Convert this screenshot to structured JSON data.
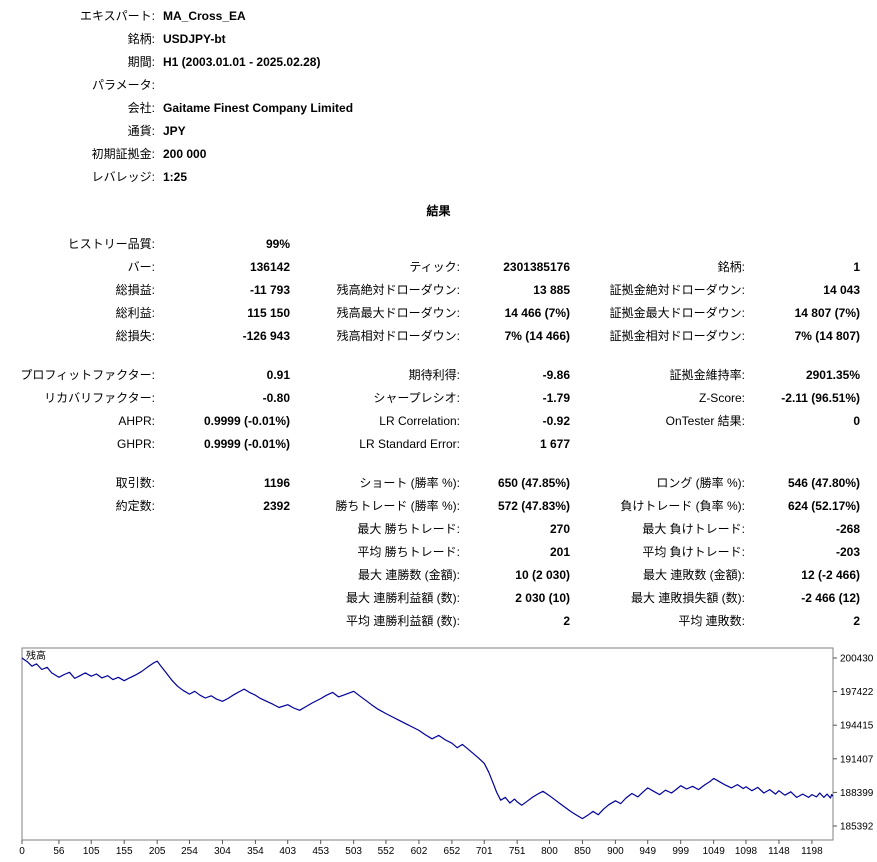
{
  "header": {
    "rows": [
      {
        "label": "エキスパート:",
        "value": "MA_Cross_EA"
      },
      {
        "label": "銘柄:",
        "value": "USDJPY-bt"
      },
      {
        "label": "期間:",
        "value": "H1 (2003.01.01 - 2025.02.28)"
      },
      {
        "label": "パラメータ:",
        "value": ""
      },
      {
        "label": "会社:",
        "value": "Gaitame Finest Company Limited"
      },
      {
        "label": "通貨:",
        "value": "JPY"
      },
      {
        "label": "初期証拠金:",
        "value": "200 000"
      },
      {
        "label": "レバレッジ:",
        "value": "1:25"
      }
    ]
  },
  "results": {
    "title": "結果",
    "groups": [
      [
        [
          "ヒストリー品質:",
          "99%",
          "",
          "",
          "",
          ""
        ],
        [
          "バー:",
          "136142",
          "ティック:",
          "2301385176",
          "銘柄:",
          "1"
        ],
        [
          "総損益:",
          "-11 793",
          "残高絶対ドローダウン:",
          "13 885",
          "証拠金絶対ドローダウン:",
          "14 043"
        ],
        [
          "総利益:",
          "115 150",
          "残高最大ドローダウン:",
          "14 466 (7%)",
          "証拠金最大ドローダウン:",
          "14 807 (7%)"
        ],
        [
          "総損失:",
          "-126 943",
          "残高相対ドローダウン:",
          "7% (14 466)",
          "証拠金相対ドローダウン:",
          "7% (14 807)"
        ]
      ],
      [
        [
          "プロフィットファクター:",
          "0.91",
          "期待利得:",
          "-9.86",
          "証拠金維持率:",
          "2901.35%"
        ],
        [
          "リカバリファクター:",
          "-0.80",
          "シャープレシオ:",
          "-1.79",
          "Z-Score:",
          "-2.11 (96.51%)"
        ],
        [
          "AHPR:",
          "0.9999 (-0.01%)",
          "LR Correlation:",
          "-0.92",
          "OnTester 結果:",
          "0"
        ],
        [
          "GHPR:",
          "0.9999 (-0.01%)",
          "LR Standard Error:",
          "1 677",
          "",
          ""
        ]
      ],
      [
        [
          "取引数:",
          "1196",
          "ショート (勝率 %):",
          "650 (47.85%)",
          "ロング (勝率 %):",
          "546 (47.80%)"
        ],
        [
          "約定数:",
          "2392",
          "勝ちトレード (勝率 %):",
          "572 (47.83%)",
          "負けトレード (負率 %):",
          "624 (52.17%)"
        ],
        [
          "",
          "",
          "最大 勝ちトレード:",
          "270",
          "最大 負けトレード:",
          "-268"
        ],
        [
          "",
          "",
          "平均 勝ちトレード:",
          "201",
          "平均 負けトレード:",
          "-203"
        ],
        [
          "",
          "",
          "最大 連勝数 (金額):",
          "10 (2 030)",
          "最大 連敗数 (金額):",
          "12 (-2 466)"
        ],
        [
          "",
          "",
          "最大 連勝利益額 (数):",
          "2 030 (10)",
          "最大 連敗損失額 (数):",
          "-2 466 (12)"
        ],
        [
          "",
          "",
          "平均 連勝利益額 (数):",
          "2",
          "平均 連敗数:",
          "2"
        ]
      ]
    ]
  },
  "chart_data": {
    "type": "line",
    "title": "残高",
    "xlabel": "",
    "ylabel": "",
    "xlim": [
      0,
      1230
    ],
    "ylim": [
      185392,
      200430
    ],
    "x_ticks": [
      0,
      56,
      105,
      155,
      205,
      254,
      304,
      354,
      403,
      453,
      503,
      552,
      602,
      652,
      701,
      751,
      800,
      850,
      900,
      949,
      999,
      1049,
      1098,
      1148,
      1198
    ],
    "y_ticks": [
      200430,
      197422,
      194415,
      191407,
      188399,
      185392
    ],
    "grid": false,
    "legend_position": "top-left",
    "line_color": "#00009b",
    "series": [
      {
        "name": "残高",
        "x": [
          0,
          8,
          15,
          22,
          30,
          38,
          45,
          56,
          64,
          72,
          80,
          88,
          96,
          105,
          113,
          121,
          130,
          138,
          146,
          155,
          163,
          172,
          181,
          190,
          200,
          205,
          212,
          220,
          228,
          236,
          245,
          254,
          262,
          270,
          278,
          287,
          295,
          304,
          312,
          320,
          329,
          337,
          345,
          354,
          362,
          371,
          380,
          390,
          403,
          412,
          421,
          430,
          440,
          453,
          462,
          471,
          480,
          490,
          503,
          512,
          521,
          530,
          540,
          552,
          562,
          572,
          582,
          592,
          602,
          612,
          622,
          632,
          642,
          652,
          660,
          668,
          676,
          684,
          692,
          701,
          708,
          714,
          720,
          726,
          733,
          740,
          747,
          751,
          758,
          766,
          774,
          782,
          790,
          800,
          808,
          816,
          824,
          832,
          840,
          850,
          858,
          866,
          874,
          882,
          890,
          900,
          908,
          916,
          925,
          934,
          943,
          949,
          958,
          967,
          976,
          985,
          994,
          999,
          1008,
          1017,
          1026,
          1035,
          1044,
          1049,
          1058,
          1067,
          1076,
          1085,
          1094,
          1098,
          1107,
          1116,
          1125,
          1134,
          1143,
          1148,
          1157,
          1166,
          1175,
          1184,
          1193,
          1198,
          1205,
          1210,
          1216,
          1221,
          1226,
          1228,
          1230
        ],
        "y": [
          200430,
          200100,
          199700,
          199900,
          199400,
          199600,
          199100,
          198700,
          198950,
          199150,
          198600,
          198850,
          199100,
          198800,
          199000,
          198650,
          198850,
          198500,
          198700,
          198400,
          198650,
          198900,
          199200,
          199600,
          200000,
          200150,
          199600,
          199000,
          198400,
          197900,
          197500,
          197200,
          197450,
          197100,
          196850,
          197050,
          196750,
          196550,
          196800,
          197100,
          197400,
          197650,
          197350,
          197100,
          196800,
          196550,
          196300,
          196000,
          196250,
          195950,
          195750,
          196050,
          196400,
          196800,
          197100,
          197350,
          196950,
          197150,
          197450,
          197050,
          196650,
          196250,
          195850,
          195450,
          195150,
          194850,
          194550,
          194250,
          193950,
          193550,
          193200,
          193500,
          193100,
          192800,
          192400,
          192700,
          192300,
          191900,
          191500,
          191000,
          190200,
          189300,
          188400,
          187700,
          187950,
          187450,
          187800,
          187550,
          187250,
          187600,
          187950,
          188250,
          188500,
          188100,
          187750,
          187400,
          187050,
          186700,
          186400,
          186050,
          186350,
          186700,
          186400,
          186900,
          187300,
          187650,
          187400,
          187900,
          188300,
          188000,
          188500,
          188800,
          188500,
          188200,
          188600,
          188350,
          188750,
          189000,
          188700,
          188950,
          188650,
          189050,
          189400,
          189650,
          189350,
          189050,
          188800,
          189100,
          188750,
          188900,
          188550,
          188850,
          188350,
          188650,
          188250,
          188550,
          188150,
          188450,
          187950,
          188250,
          187950,
          188200,
          188000,
          188350,
          187950,
          188250,
          187900,
          188200,
          188050
        ]
      }
    ]
  }
}
